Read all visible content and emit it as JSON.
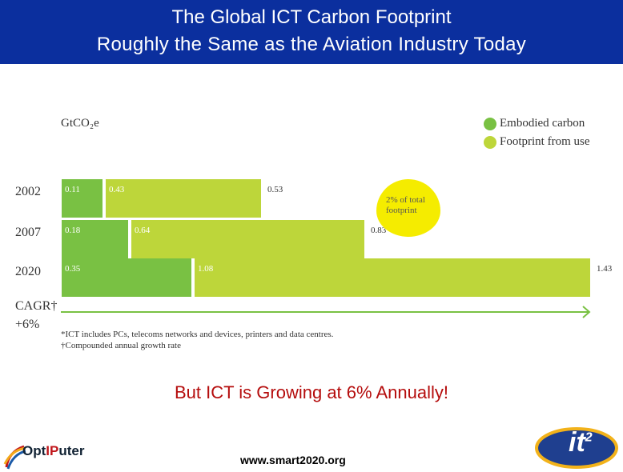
{
  "header": {
    "line1": "The Global ICT Carbon Footprint",
    "line2": "Roughly the Same as the Aviation Industry Today"
  },
  "colors": {
    "header_bg": "#0b2f9e",
    "embodied": "#79c143",
    "use": "#bdd63a",
    "callout": "#f5ec00",
    "growth_text": "#b50c0c"
  },
  "chart_data": {
    "type": "bar",
    "orientation": "horizontal",
    "stacked": true,
    "units_label": "GtCO₂e",
    "categories": [
      "2002",
      "2007",
      "2020"
    ],
    "series": [
      {
        "name": "Embodied carbon",
        "values": [
          0.11,
          0.18,
          0.35
        ],
        "labels": [
          "0.11",
          "0.18",
          "0.35"
        ]
      },
      {
        "name": "Footprint from use",
        "values": [
          0.43,
          0.64,
          1.08
        ],
        "labels": [
          "0.43",
          "0.64",
          "1.08"
        ]
      }
    ],
    "totals": [
      0.53,
      0.83,
      1.43
    ],
    "total_labels": [
      "0.53",
      "0.83",
      "1.43"
    ],
    "callout": {
      "line1": "2% of total",
      "line2": "footprint"
    },
    "cagr_label": "CAGR†",
    "cagr_value": "+6%",
    "footnote1": "*ICT includes PCs, telecoms networks and devices, printers and data centres.",
    "footnote2": "†Compounded annual growth rate"
  },
  "growth_text": "But ICT is Growing at 6% Annually!",
  "url": "www.smart2020.org",
  "logos": {
    "optiputer_left": "Opt",
    "optiputer_mid": "IP",
    "optiputer_right": "uter",
    "it2_main": "it",
    "it2_sup": "2"
  }
}
